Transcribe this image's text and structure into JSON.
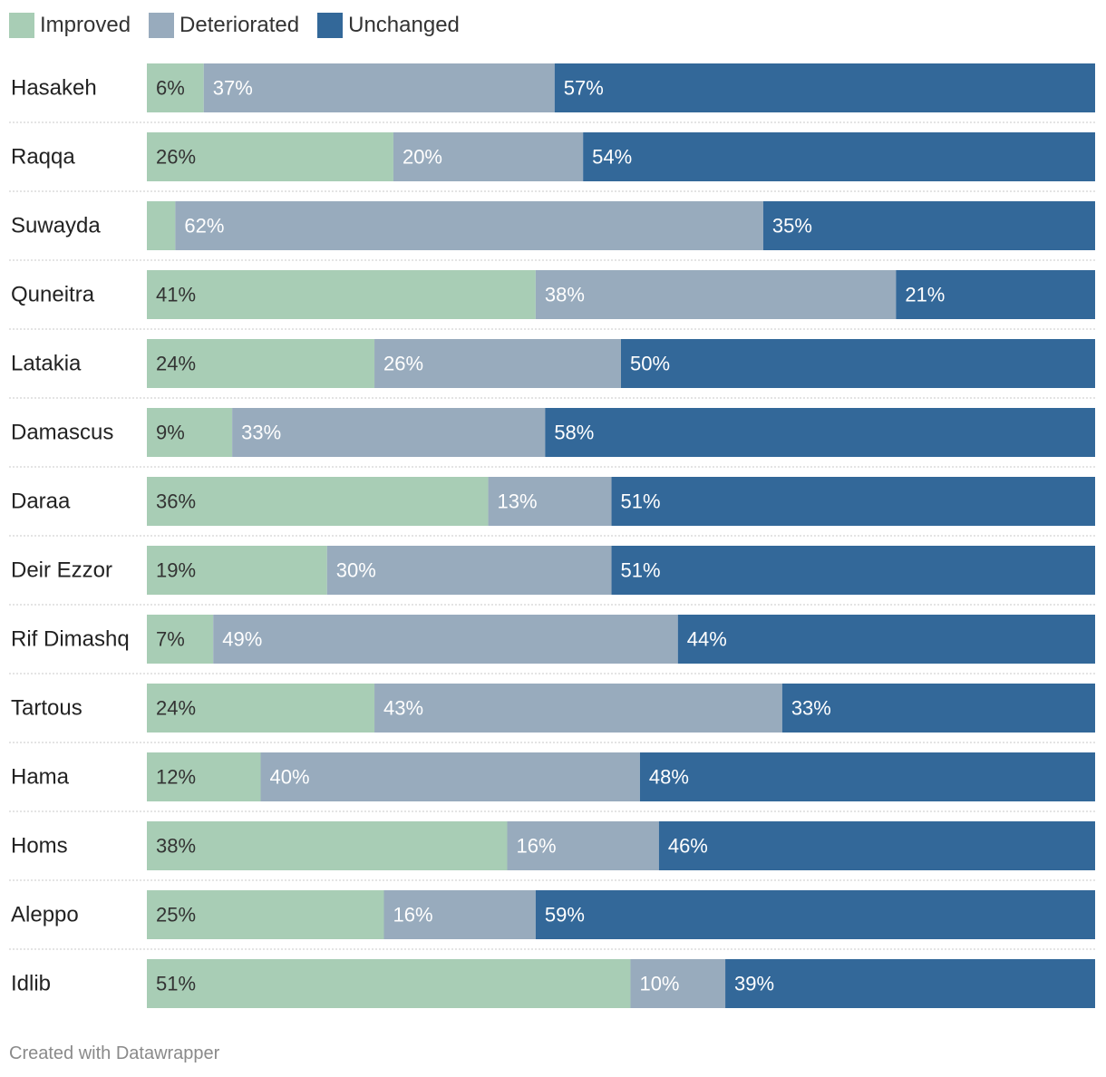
{
  "chart_data": {
    "type": "bar",
    "orientation": "horizontal",
    "stacked": true,
    "unit": "%",
    "legend_position": "top-left",
    "categories": [
      "Hasakeh",
      "Raqqa",
      "Suwayda",
      "Quneitra",
      "Latakia",
      "Damascus",
      "Daraa",
      "Deir Ezzor",
      "Rif Dimashq",
      "Tartous",
      "Hama",
      "Homs",
      "Aleppo",
      "Idlib"
    ],
    "series": [
      {
        "name": "Improved",
        "color": "#a8cdb5",
        "label_color": "#333333",
        "values": [
          6,
          26,
          3,
          41,
          24,
          9,
          36,
          19,
          7,
          24,
          12,
          38,
          25,
          51
        ],
        "labels": [
          "6%",
          "26%",
          "",
          "41%",
          "24%",
          "9%",
          "36%",
          "19%",
          "7%",
          "24%",
          "12%",
          "38%",
          "25%",
          "51%"
        ]
      },
      {
        "name": "Deteriorated",
        "color": "#98abbd",
        "label_color": "#ffffff",
        "values": [
          37,
          20,
          62,
          38,
          26,
          33,
          13,
          30,
          49,
          43,
          40,
          16,
          16,
          10
        ],
        "labels": [
          "37%",
          "20%",
          "62%",
          "38%",
          "26%",
          "33%",
          "13%",
          "30%",
          "49%",
          "43%",
          "40%",
          "16%",
          "16%",
          "10%"
        ]
      },
      {
        "name": "Unchanged",
        "color": "#336899",
        "label_color": "#ffffff",
        "values": [
          57,
          54,
          35,
          21,
          50,
          58,
          51,
          51,
          44,
          33,
          48,
          46,
          59,
          39
        ],
        "labels": [
          "57%",
          "54%",
          "35%",
          "21%",
          "50%",
          "58%",
          "51%",
          "51%",
          "44%",
          "33%",
          "48%",
          "46%",
          "59%",
          "39%"
        ]
      }
    ],
    "xlim": [
      0,
      100
    ],
    "grid": false
  },
  "footer": {
    "credit": "Created with Datawrapper"
  }
}
